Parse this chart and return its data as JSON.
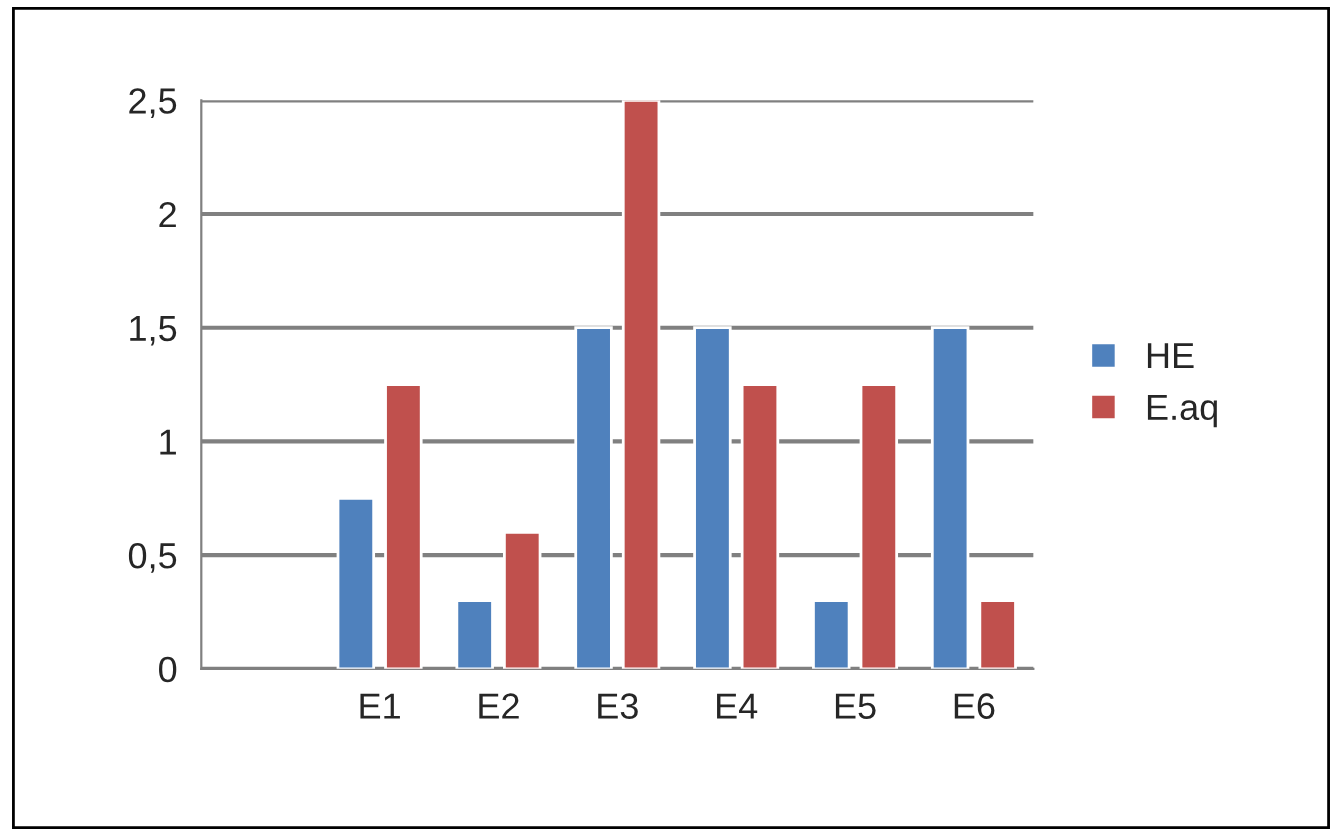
{
  "chart_data": {
    "type": "bar",
    "categories": [
      null,
      "E1",
      "E2",
      "E3",
      "E4",
      "E5",
      "E6"
    ],
    "series": [
      {
        "name": "HE",
        "color": "#4f81bd",
        "values": [
          null,
          0.75,
          0.3,
          1.5,
          1.5,
          0.3,
          1.5
        ]
      },
      {
        "name": "E.aq",
        "color": "#c0504d",
        "values": [
          null,
          1.25,
          0.6,
          2.5,
          1.25,
          1.25,
          0.3
        ]
      }
    ],
    "ylim": [
      0,
      2.5
    ],
    "yticks": [
      0,
      {
        "value": 0.5,
        "label": "0,5"
      },
      1,
      {
        "value": 1.5,
        "label": "1,5"
      },
      2,
      {
        "value": 2.5,
        "label": "2,5"
      }
    ],
    "grid": "y",
    "legend": "right"
  }
}
